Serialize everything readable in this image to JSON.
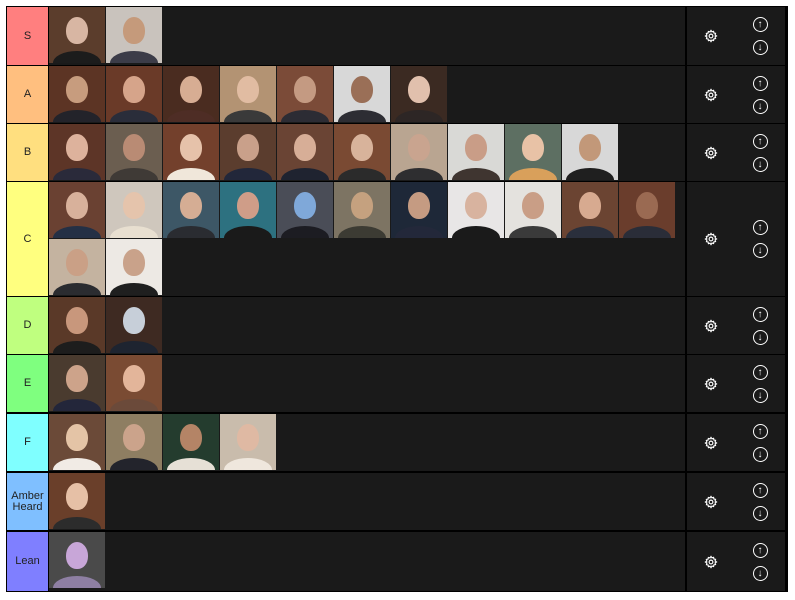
{
  "tiers": [
    {
      "label": "S",
      "color": "#ff7f7f",
      "thumbs": [
        {
          "name": "thumb-1",
          "bg": "#5b3d2c",
          "skin": "#d8b6a3",
          "shirt": "#1c1c1c"
        },
        {
          "name": "thumb-2",
          "bg": "#c9c3bd",
          "skin": "#c59a7b",
          "shirt": "#3c3c48"
        }
      ]
    },
    {
      "label": "A",
      "color": "#ffbf7f",
      "thumbs": [
        {
          "name": "thumb-1",
          "bg": "#5c3424",
          "skin": "#c79c7e",
          "shirt": "#23232a"
        },
        {
          "name": "thumb-2",
          "bg": "#6a3a28",
          "skin": "#d6a48a",
          "shirt": "#2a2d3a"
        },
        {
          "name": "thumb-3",
          "bg": "#4a2c20",
          "skin": "#d7ad93",
          "shirt": "#4e2d25"
        },
        {
          "name": "thumb-4",
          "bg": "#b39373",
          "skin": "#e1bca2",
          "shirt": "#3a3a3a"
        },
        {
          "name": "thumb-5",
          "bg": "#7b4b38",
          "skin": "#c49a82",
          "shirt": "#2c2c34"
        },
        {
          "name": "thumb-6",
          "bg": "#d8d8d8",
          "skin": "#9a6f57",
          "shirt": "#2d2d33"
        },
        {
          "name": "thumb-7",
          "bg": "#3b2a22",
          "skin": "#e1c0ad",
          "shirt": "#2d2625"
        }
      ]
    },
    {
      "label": "B",
      "color": "#ffdf7f",
      "thumbs": [
        {
          "name": "thumb-1",
          "bg": "#5d3527",
          "skin": "#ddb29c",
          "shirt": "#2a2a3a"
        },
        {
          "name": "thumb-2",
          "bg": "#6b5e50",
          "skin": "#b98b74",
          "shirt": "#3f3a36"
        },
        {
          "name": "thumb-3",
          "bg": "#73402c",
          "skin": "#e6c2aa",
          "shirt": "#f0e7da"
        },
        {
          "name": "thumb-4",
          "bg": "#5b3d2e",
          "skin": "#c9a08a",
          "shirt": "#22273a"
        },
        {
          "name": "thumb-5",
          "bg": "#6a4434",
          "skin": "#d7ae97",
          "shirt": "#1f2330"
        },
        {
          "name": "thumb-6",
          "bg": "#7a4a33",
          "skin": "#d8b39b",
          "shirt": "#2b2b2b"
        },
        {
          "name": "thumb-7",
          "bg": "#b9a591",
          "skin": "#c9a48f",
          "shirt": "#2e2e30"
        },
        {
          "name": "thumb-8",
          "bg": "#d9d9d6",
          "skin": "#c99d87",
          "shirt": "#3f3530"
        },
        {
          "name": "thumb-9",
          "bg": "#5d6f62",
          "skin": "#e8c2a6",
          "shirt": "#d9a05b"
        },
        {
          "name": "thumb-10",
          "bg": "#d8d8d8",
          "skin": "#c29879",
          "shirt": "#1f1f1f"
        }
      ]
    },
    {
      "label": "C",
      "color": "#ffff7f",
      "thumbs": [
        {
          "name": "thumb-1",
          "bg": "#6a4132",
          "skin": "#d8b19b",
          "shirt": "#243045"
        },
        {
          "name": "thumb-2",
          "bg": "#cfc7bd",
          "skin": "#e5c4ac",
          "shirt": "#e8dfd0"
        },
        {
          "name": "thumb-3",
          "bg": "#3d5766",
          "skin": "#d5ad94",
          "shirt": "#2a2c31"
        },
        {
          "name": "thumb-4",
          "bg": "#2d7180",
          "skin": "#cf9d88",
          "shirt": "#1a1a1a"
        },
        {
          "name": "thumb-5",
          "bg": "#4a4d57",
          "skin": "#7fa8d9",
          "shirt": "#1c1c22"
        },
        {
          "name": "thumb-6",
          "bg": "#7d7463",
          "skin": "#c5a17f",
          "shirt": "#3c3b33"
        },
        {
          "name": "thumb-7",
          "bg": "#1e2838",
          "skin": "#c59b82",
          "shirt": "#23283a"
        },
        {
          "name": "thumb-8",
          "bg": "#e8e6e6",
          "skin": "#d8b39f",
          "shirt": "#1a1a1a"
        },
        {
          "name": "thumb-9",
          "bg": "#e4e2de",
          "skin": "#c99e86",
          "shirt": "#3a3a3a"
        },
        {
          "name": "thumb-10",
          "bg": "#6b4432",
          "skin": "#d7aa90",
          "shirt": "#2a2f3c"
        },
        {
          "name": "thumb-11",
          "bg": "#6a3d2c",
          "skin": "#9a6a52",
          "shirt": "#2a2d38"
        },
        {
          "name": "thumb-12",
          "bg": "#c4b3a0",
          "skin": "#caa086",
          "shirt": "#2b2c30"
        },
        {
          "name": "thumb-13",
          "bg": "#ede9e4",
          "skin": "#c9a28a",
          "shirt": "#1f1f1f"
        }
      ]
    },
    {
      "label": "D",
      "color": "#bfff7f",
      "thumbs": [
        {
          "name": "thumb-1",
          "bg": "#5a3928",
          "skin": "#c8977c",
          "shirt": "#1d1d1d"
        },
        {
          "name": "thumb-2",
          "bg": "#3e2a22",
          "skin": "#c7cfd9",
          "shirt": "#1e2430"
        }
      ]
    },
    {
      "label": "E",
      "color": "#7fff7f",
      "thumbs": [
        {
          "name": "thumb-1",
          "bg": "#4a3b2f",
          "skin": "#cda38a",
          "shirt": "#23263a"
        },
        {
          "name": "thumb-2",
          "bg": "#7a4b33",
          "skin": "#e3b59a",
          "shirt": "#6b4a3a"
        }
      ]
    },
    {
      "label": "F",
      "color": "#7fffff",
      "thumbs": [
        {
          "name": "thumb-1",
          "bg": "#6b4a38",
          "skin": "#e4c4a6",
          "shirt": "#f1ebe5"
        },
        {
          "name": "thumb-2",
          "bg": "#8e7e62",
          "skin": "#cba38b",
          "shirt": "#23242c"
        },
        {
          "name": "thumb-3",
          "bg": "#243c2e",
          "skin": "#b48466",
          "shirt": "#e6e0d6"
        },
        {
          "name": "thumb-4",
          "bg": "#c9bcac",
          "skin": "#dfb9a3",
          "shirt": "#efe7dd"
        }
      ]
    },
    {
      "label": "Amber Heard",
      "color": "#7fbfff",
      "thumbs": [
        {
          "name": "thumb-1",
          "bg": "#6a3f2a",
          "skin": "#e6c0a6",
          "shirt": "#2c2c2c"
        }
      ]
    },
    {
      "label": "Lean",
      "color": "#7f7fff",
      "thumbs": [
        {
          "name": "thumb-1",
          "bg": "#4a4a4a",
          "skin": "#c8a6d8",
          "shirt": "#8e7fa3"
        }
      ]
    }
  ]
}
